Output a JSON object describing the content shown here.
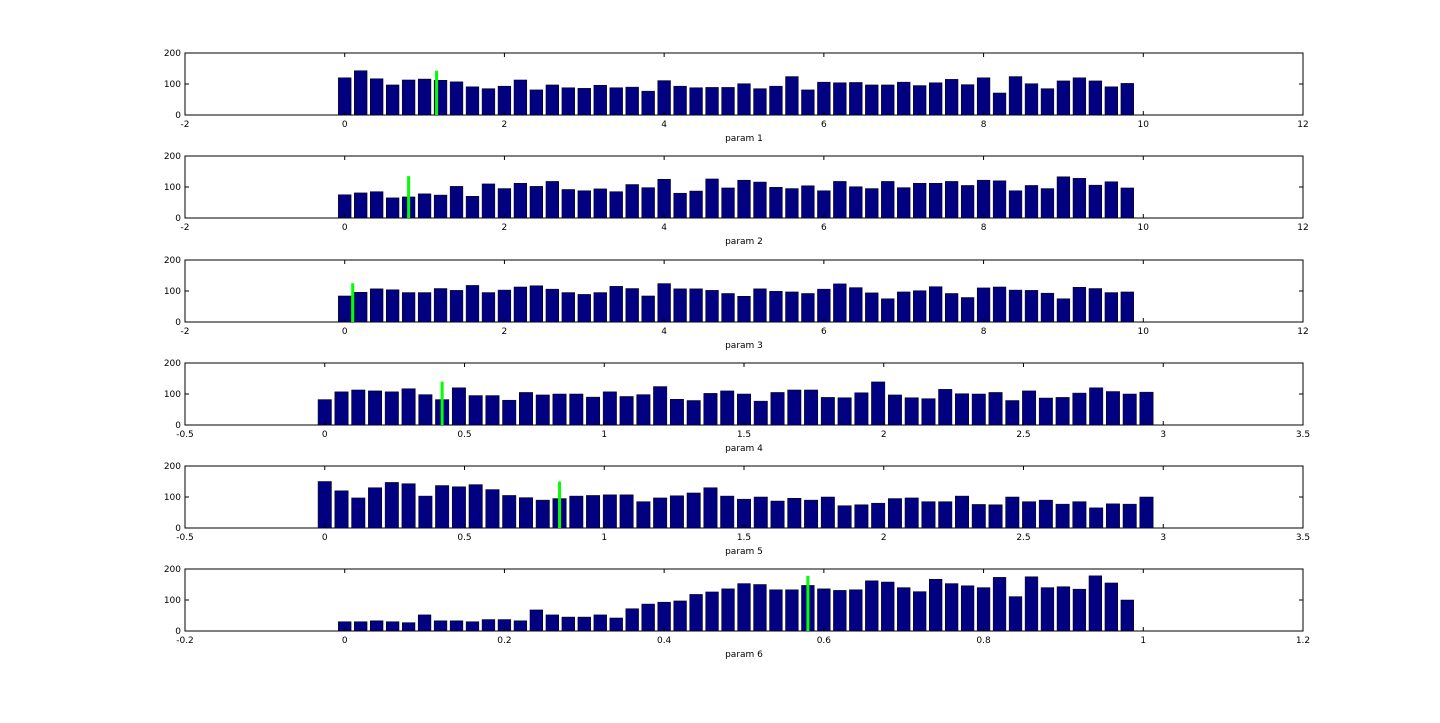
{
  "colors": {
    "bar_fill": "#000080",
    "bar_edge": "#000000",
    "marker": "#00ff00",
    "axes": "#000000",
    "background": "#ffffff"
  },
  "chart_data": [
    {
      "type": "bar",
      "xlabel": "param 1",
      "ylabel": "",
      "xlim": [
        -2,
        12
      ],
      "ylim": [
        0,
        200
      ],
      "xticks": [
        "-2",
        "0",
        "2",
        "4",
        "6",
        "8",
        "10",
        "12"
      ],
      "yticks": [
        "0",
        "100",
        "200"
      ],
      "bin_start": 0,
      "bin_width": 0.2,
      "values": [
        120,
        143,
        117,
        97,
        113,
        116,
        112,
        107,
        91,
        85,
        93,
        113,
        81,
        97,
        88,
        86,
        96,
        88,
        90,
        77,
        111,
        93,
        88,
        89,
        89,
        101,
        85,
        93,
        124,
        81,
        106,
        104,
        105,
        97,
        97,
        106,
        95,
        104,
        115,
        98,
        120,
        71,
        124,
        101,
        85,
        110,
        120,
        110,
        91,
        102
      ],
      "marker_x": 1.15,
      "marker_height": 143,
      "grid": false,
      "legend": "none"
    },
    {
      "type": "bar",
      "xlabel": "param 2",
      "ylabel": "",
      "xlim": [
        -2,
        12
      ],
      "ylim": [
        0,
        200
      ],
      "xticks": [
        "-2",
        "0",
        "2",
        "4",
        "6",
        "8",
        "10",
        "12"
      ],
      "yticks": [
        "0",
        "100",
        "200"
      ],
      "bin_start": 0,
      "bin_width": 0.2,
      "values": [
        75,
        81,
        85,
        65,
        68,
        78,
        74,
        102,
        70,
        110,
        95,
        112,
        102,
        118,
        92,
        88,
        94,
        85,
        108,
        98,
        125,
        80,
        87,
        126,
        97,
        122,
        116,
        99,
        95,
        104,
        88,
        118,
        101,
        95,
        118,
        98,
        112,
        112,
        118,
        105,
        122,
        120,
        88,
        105,
        95,
        133,
        128,
        106,
        117,
        97
      ],
      "marker_x": 0.8,
      "marker_height": 135,
      "grid": false,
      "legend": "none"
    },
    {
      "type": "bar",
      "xlabel": "param 3",
      "ylabel": "",
      "xlim": [
        -2,
        12
      ],
      "ylim": [
        0,
        200
      ],
      "xticks": [
        "-2",
        "0",
        "2",
        "4",
        "6",
        "8",
        "10",
        "12"
      ],
      "yticks": [
        "0",
        "100",
        "200"
      ],
      "bin_start": 0,
      "bin_width": 0.2,
      "values": [
        84,
        96,
        107,
        104,
        95,
        95,
        108,
        102,
        118,
        95,
        103,
        113,
        117,
        106,
        95,
        89,
        95,
        115,
        108,
        84,
        124,
        107,
        107,
        102,
        92,
        83,
        107,
        99,
        97,
        92,
        106,
        123,
        111,
        94,
        75,
        97,
        101,
        114,
        92,
        79,
        110,
        113,
        103,
        102,
        93,
        75,
        112,
        108,
        95,
        97
      ],
      "marker_x": 0.1,
      "marker_height": 125,
      "grid": false,
      "legend": "none"
    },
    {
      "type": "bar",
      "xlabel": "param 4",
      "ylabel": "",
      "xlim": [
        -0.5,
        3.5
      ],
      "ylim": [
        0,
        200
      ],
      "xticks": [
        "-0.5",
        "0",
        "0.5",
        "1",
        "1.5",
        "2",
        "2.5",
        "3",
        "3.5"
      ],
      "yticks": [
        "0",
        "100",
        "200"
      ],
      "bin_start": 0,
      "bin_width": 0.06,
      "values": [
        82,
        107,
        113,
        110,
        107,
        117,
        98,
        82,
        120,
        95,
        95,
        80,
        105,
        97,
        100,
        100,
        90,
        107,
        92,
        98,
        124,
        83,
        79,
        102,
        110,
        100,
        77,
        105,
        113,
        113,
        89,
        88,
        104,
        139,
        97,
        88,
        85,
        115,
        101,
        100,
        105,
        79,
        110,
        87,
        89,
        103,
        120,
        108,
        100,
        106
      ],
      "marker_x": 0.42,
      "marker_height": 140,
      "grid": false,
      "legend": "none"
    },
    {
      "type": "bar",
      "xlabel": "param 5",
      "ylabel": "",
      "xlim": [
        -0.5,
        3.5
      ],
      "ylim": [
        0,
        200
      ],
      "xticks": [
        "-0.5",
        "0",
        "0.5",
        "1",
        "1.5",
        "2",
        "2.5",
        "3",
        "3.5"
      ],
      "yticks": [
        "0",
        "100",
        "200"
      ],
      "bin_start": 0,
      "bin_width": 0.06,
      "values": [
        150,
        120,
        97,
        130,
        147,
        143,
        103,
        137,
        133,
        140,
        124,
        105,
        98,
        90,
        95,
        103,
        105,
        107,
        107,
        85,
        97,
        104,
        113,
        130,
        103,
        93,
        100,
        87,
        96,
        90,
        100,
        72,
        75,
        80,
        95,
        97,
        85,
        85,
        103,
        76,
        75,
        100,
        85,
        90,
        77,
        85,
        65,
        78,
        77,
        100
      ],
      "marker_x": 0.84,
      "marker_height": 150,
      "grid": false,
      "legend": "none"
    },
    {
      "type": "bar",
      "xlabel": "param 6",
      "ylabel": "",
      "xlim": [
        -0.2,
        1.2
      ],
      "ylim": [
        0,
        200
      ],
      "xticks": [
        "-0.2",
        "0",
        "0.2",
        "0.4",
        "0.6",
        "0.8",
        "1",
        "1.2"
      ],
      "yticks": [
        "0",
        "100",
        "200"
      ],
      "bin_start": 0,
      "bin_width": 0.02,
      "values": [
        30,
        30,
        33,
        30,
        27,
        52,
        33,
        33,
        30,
        37,
        37,
        33,
        68,
        52,
        45,
        45,
        52,
        42,
        72,
        87,
        93,
        97,
        118,
        126,
        136,
        153,
        150,
        133,
        133,
        147,
        136,
        131,
        133,
        162,
        158,
        140,
        127,
        167,
        153,
        146,
        140,
        173,
        111,
        175,
        140,
        143,
        135,
        178,
        155,
        100
      ],
      "marker_x": 0.58,
      "marker_height": 178,
      "grid": false,
      "legend": "none"
    }
  ]
}
